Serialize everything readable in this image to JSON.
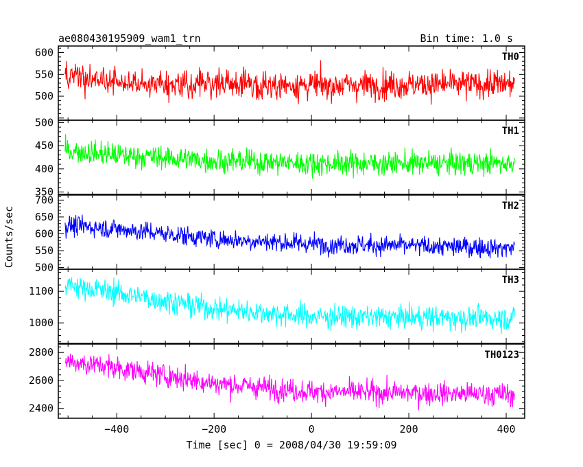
{
  "header": {
    "left_title": "ae080430195909_wam1_trn",
    "right_title": "Bin time: 1.0 s"
  },
  "chart_data": {
    "type": "line",
    "xlabel": "Time [sec] 0 = 2008/04/30 19:59:09",
    "ylabel": "Counts/sec",
    "xlim": [
      -520,
      438
    ],
    "xticks": [
      -400,
      -200,
      0,
      200,
      400
    ],
    "xtick_labels": [
      "−400",
      "−200",
      "0",
      "200",
      "400"
    ],
    "x_start": -506,
    "x_end": 417,
    "bin": 1.0,
    "grid": false,
    "panels": [
      {
        "name": "TH0",
        "color": "#ff0000",
        "ylim": [
          445,
          615
        ],
        "yticks": [
          500,
          550,
          600
        ],
        "ytick_labels": [
          "500",
          "550",
          "600"
        ],
        "trend": [
          [
            -506,
            545
          ],
          [
            -400,
            530
          ],
          [
            0,
            525
          ],
          [
            417,
            528
          ]
        ],
        "noise": 28
      },
      {
        "name": "TH1",
        "color": "#00ff00",
        "ylim": [
          345,
          505
        ],
        "yticks": [
          350,
          400,
          450,
          500
        ],
        "ytick_labels": [
          "350",
          "400",
          "450",
          "500"
        ],
        "trend": [
          [
            -506,
            440
          ],
          [
            -400,
            430
          ],
          [
            -200,
            418
          ],
          [
            0,
            412
          ],
          [
            417,
            412
          ]
        ],
        "noise": 22
      },
      {
        "name": "TH2",
        "color": "#0000ff",
        "ylim": [
          495,
          715
        ],
        "yticks": [
          500,
          550,
          600,
          650,
          700
        ],
        "ytick_labels": [
          "500",
          "550",
          "600",
          "650",
          "700"
        ],
        "trend": [
          [
            -506,
            625
          ],
          [
            -400,
            615
          ],
          [
            -200,
            585
          ],
          [
            0,
            570
          ],
          [
            417,
            558
          ]
        ],
        "noise": 25
      },
      {
        "name": "TH3",
        "color": "#00ffff",
        "ylim": [
          935,
          1170
        ],
        "yticks": [
          1000,
          1100
        ],
        "ytick_labels": [
          "1000",
          "1100"
        ],
        "trend": [
          [
            -506,
            1120
          ],
          [
            -400,
            1095
          ],
          [
            -200,
            1045
          ],
          [
            0,
            1020
          ],
          [
            417,
            1015
          ]
        ],
        "noise": 32
      },
      {
        "name": "TH0123",
        "color": "#ff00ff",
        "ylim": [
          2330,
          2860
        ],
        "yticks": [
          2400,
          2600,
          2800
        ],
        "ytick_labels": [
          "2400",
          "2600",
          "2800"
        ],
        "trend": [
          [
            -506,
            2740
          ],
          [
            -400,
            2690
          ],
          [
            -200,
            2580
          ],
          [
            0,
            2520
          ],
          [
            417,
            2500
          ]
        ],
        "noise": 70
      }
    ]
  }
}
